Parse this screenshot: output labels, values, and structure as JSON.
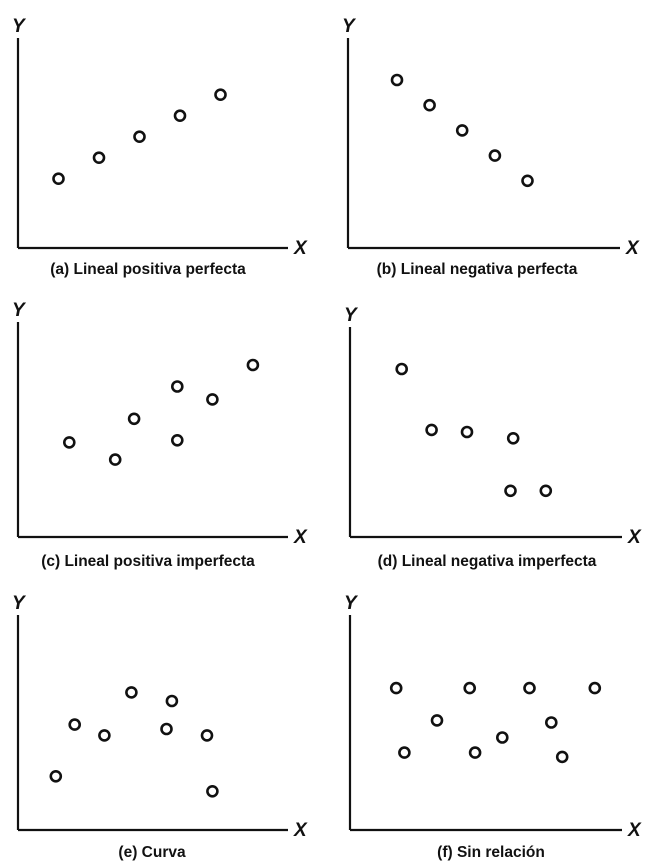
{
  "chart_data": [
    {
      "type": "scatter",
      "ylabel": "Y",
      "xlabel": "X",
      "caption": "(a) Lineal positiva perfecta",
      "xlim": [
        0,
        10
      ],
      "ylim": [
        0,
        10
      ],
      "points": [
        [
          1.5,
          3.3
        ],
        [
          3.0,
          4.3
        ],
        [
          4.5,
          5.3
        ],
        [
          6.0,
          6.3
        ],
        [
          7.5,
          7.3
        ]
      ]
    },
    {
      "type": "scatter",
      "ylabel": "Y",
      "xlabel": "X",
      "caption": "(b) Lineal negativa perfecta",
      "xlim": [
        0,
        10
      ],
      "ylim": [
        0,
        10
      ],
      "points": [
        [
          1.8,
          8.0
        ],
        [
          3.0,
          6.8
        ],
        [
          4.2,
          5.6
        ],
        [
          5.4,
          4.4
        ],
        [
          6.6,
          3.2
        ]
      ]
    },
    {
      "type": "scatter",
      "ylabel": "Y",
      "xlabel": "X",
      "caption": "(c) Lineal positiva imperfecta",
      "xlim": [
        0,
        10
      ],
      "ylim": [
        0,
        10
      ],
      "points": [
        [
          1.9,
          4.4
        ],
        [
          3.6,
          3.6
        ],
        [
          4.3,
          5.5
        ],
        [
          5.9,
          4.5
        ],
        [
          5.9,
          7.0
        ],
        [
          7.2,
          6.4
        ],
        [
          8.7,
          8.0
        ]
      ]
    },
    {
      "type": "scatter",
      "ylabel": "Y",
      "xlabel": "X",
      "caption": "(d) Lineal negativa imperfecta",
      "xlim": [
        0,
        10
      ],
      "ylim": [
        0,
        10
      ],
      "points": [
        [
          1.9,
          8.0
        ],
        [
          3.0,
          5.1
        ],
        [
          4.3,
          5.0
        ],
        [
          6.0,
          4.7
        ],
        [
          5.9,
          2.2
        ],
        [
          7.2,
          2.2
        ]
      ]
    },
    {
      "type": "scatter",
      "ylabel": "Y",
      "xlabel": "X",
      "caption": "(e) Curva",
      "xlim": [
        0,
        10
      ],
      "ylim": [
        0,
        10
      ],
      "points": [
        [
          1.4,
          2.5
        ],
        [
          2.1,
          4.9
        ],
        [
          3.2,
          4.4
        ],
        [
          4.2,
          6.4
        ],
        [
          5.5,
          4.7
        ],
        [
          5.7,
          6.0
        ],
        [
          7.0,
          4.4
        ],
        [
          7.2,
          1.8
        ]
      ]
    },
    {
      "type": "scatter",
      "ylabel": "Y",
      "xlabel": "X",
      "caption": "(f) Sin relación",
      "xlim": [
        0,
        10
      ],
      "ylim": [
        0,
        10
      ],
      "points": [
        [
          1.7,
          6.6
        ],
        [
          2.0,
          3.6
        ],
        [
          3.2,
          5.1
        ],
        [
          4.4,
          6.6
        ],
        [
          4.6,
          3.6
        ],
        [
          5.6,
          4.3
        ],
        [
          6.6,
          6.6
        ],
        [
          7.4,
          5.0
        ],
        [
          7.8,
          3.4
        ],
        [
          9.0,
          6.6
        ]
      ]
    }
  ]
}
